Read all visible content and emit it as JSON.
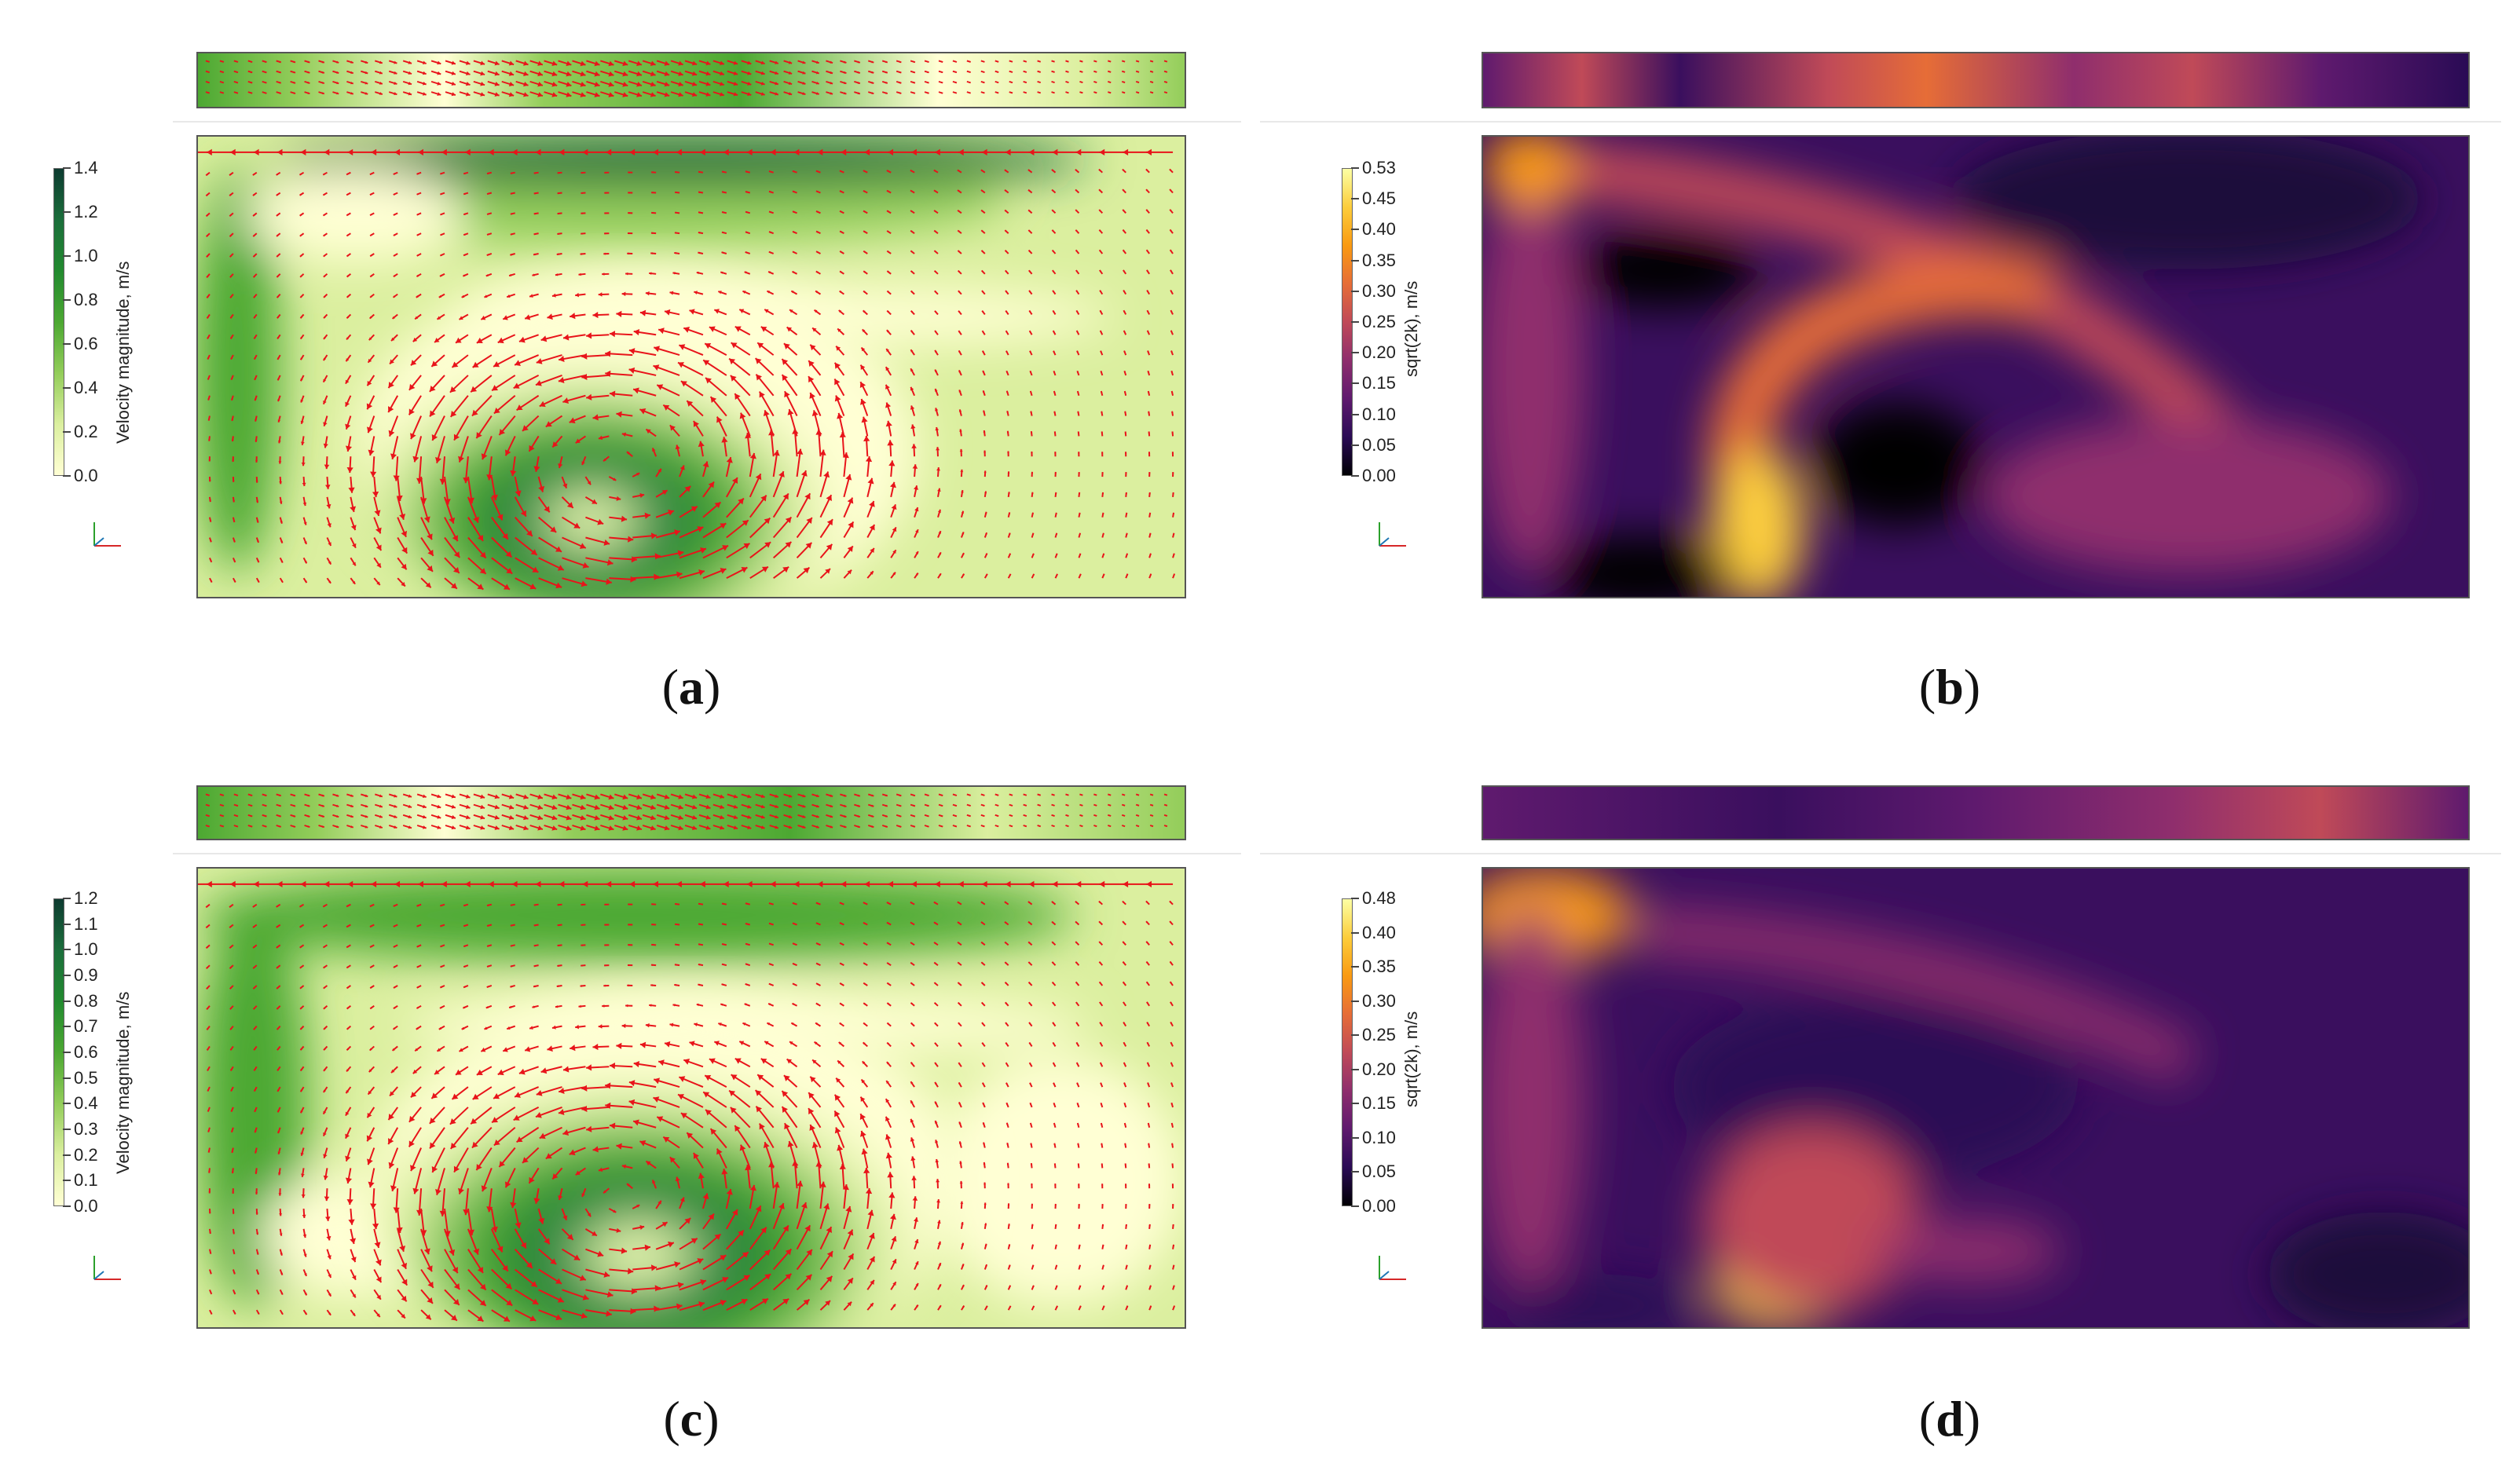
{
  "panels": [
    {
      "label": "a",
      "colorbar": {
        "title": "Velocity magnitude, m/s",
        "ticks": [
          "1.4",
          "1.2",
          "1.0",
          "0.8",
          "0.6",
          "0.4",
          "0.2",
          "0.0"
        ],
        "colormap": "green",
        "colors": [
          "#ffffd4",
          "#dbef9f",
          "#93cd5a",
          "#4ca832",
          "#228a2f",
          "#1b6e3b",
          "#0d3b30"
        ]
      }
    },
    {
      "label": "b",
      "colorbar": {
        "title": "sqrt(2k), m/s",
        "ticks": [
          "0.53",
          "0.45",
          "0.40",
          "0.35",
          "0.30",
          "0.25",
          "0.20",
          "0.15",
          "0.10",
          "0.05",
          "0.00"
        ],
        "colormap": "inferno",
        "colors": [
          "#000004",
          "#2a0b55",
          "#5f1a6e",
          "#8f2e6d",
          "#c04a58",
          "#e66d37",
          "#f99a12",
          "#fccd3c",
          "#fcffa4"
        ]
      }
    },
    {
      "label": "c",
      "colorbar": {
        "title": "Velocity magnitude, m/s",
        "ticks": [
          "1.2",
          "1.1",
          "1.0",
          "0.9",
          "0.8",
          "0.7",
          "0.6",
          "0.5",
          "0.4",
          "0.3",
          "0.2",
          "0.1",
          "0.0"
        ],
        "colormap": "green",
        "colors": [
          "#ffffd4",
          "#dbef9f",
          "#93cd5a",
          "#4ca832",
          "#228a2f",
          "#1b6e3b",
          "#0d3b30"
        ]
      }
    },
    {
      "label": "d",
      "colorbar": {
        "title": "sqrt(2k), m/s",
        "ticks": [
          "0.48",
          "0.40",
          "0.35",
          "0.30",
          "0.25",
          "0.20",
          "0.15",
          "0.10",
          "0.05",
          "0.00"
        ],
        "colormap": "inferno",
        "colors": [
          "#000004",
          "#2a0b55",
          "#5f1a6e",
          "#8f2e6d",
          "#c04a58",
          "#e66d37",
          "#f99a12",
          "#fccd3c",
          "#fcffa4"
        ]
      }
    }
  ],
  "captions": {
    "a_open": "(",
    "a": "a",
    "a_close": ")",
    "b_open": "(",
    "b": "b",
    "b_close": ")",
    "c_open": "(",
    "c": "c",
    "c_close": ")",
    "d_open": "(",
    "d": "d",
    "d_close": ")"
  },
  "colors": {
    "vector_arrows": "#e8141a",
    "frame": "#555555"
  }
}
